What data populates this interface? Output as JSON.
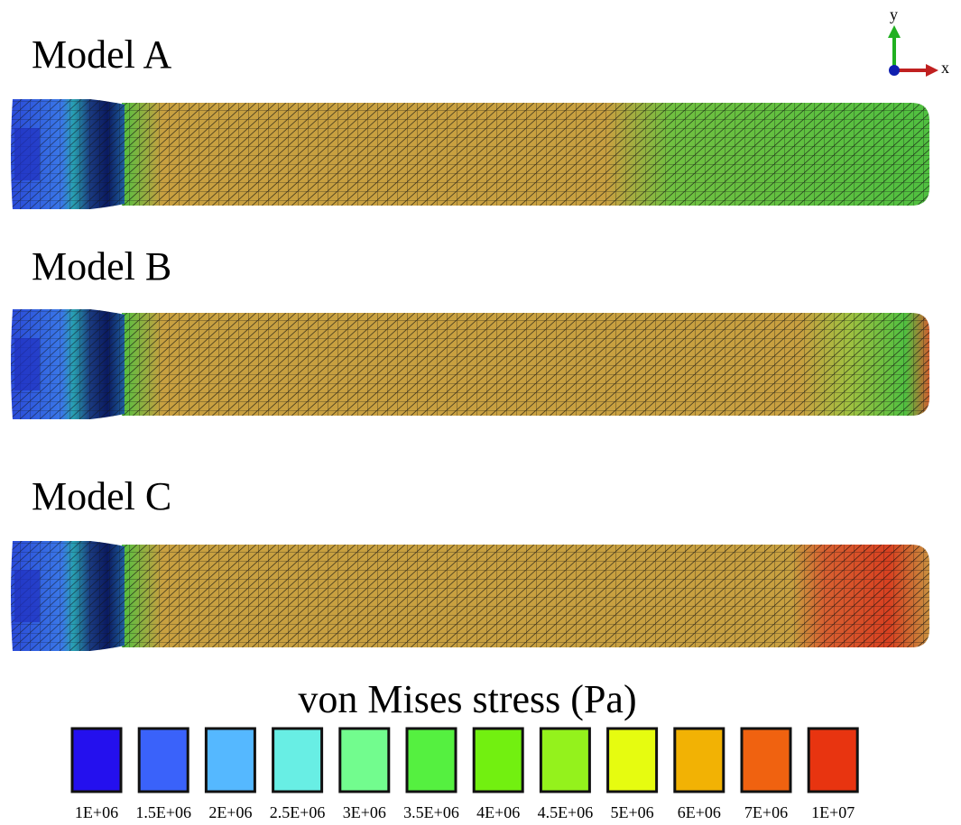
{
  "figure": {
    "models": [
      {
        "label": "Model A"
      },
      {
        "label": "Model B"
      },
      {
        "label": "Model C"
      }
    ],
    "axes": {
      "y": "y",
      "x": "x"
    },
    "legend": {
      "title": "von Mises stress (Pa)",
      "items": [
        {
          "label": "1E+06",
          "color": "#2410ee"
        },
        {
          "label": "1.5E+06",
          "color": "#3a62fa"
        },
        {
          "label": "2E+06",
          "color": "#55b8ff"
        },
        {
          "label": "2.5E+06",
          "color": "#68eee4"
        },
        {
          "label": "3E+06",
          "color": "#72fc8e"
        },
        {
          "label": "3.5E+06",
          "color": "#55f040"
        },
        {
          "label": "4E+06",
          "color": "#72f010"
        },
        {
          "label": "4.5E+06",
          "color": "#94f21c"
        },
        {
          "label": "5E+06",
          "color": "#e6fc10"
        },
        {
          "label": "6E+06",
          "color": "#f2b204"
        },
        {
          "label": "7E+06",
          "color": "#f06210"
        },
        {
          "label": "1E+07",
          "color": "#e83410"
        }
      ]
    }
  }
}
